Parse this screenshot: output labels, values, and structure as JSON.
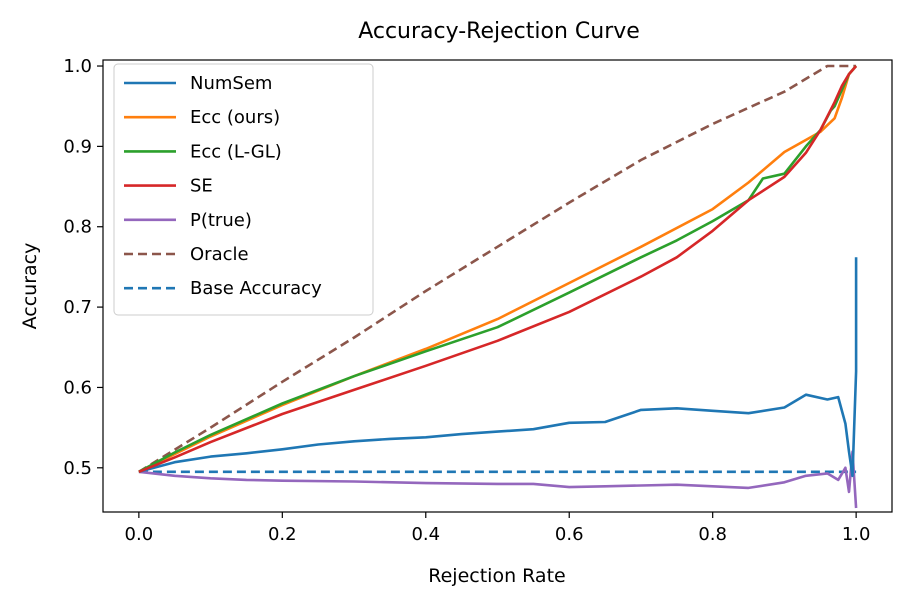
{
  "chart_data": {
    "type": "line",
    "title": "Accuracy-Rejection Curve",
    "xlabel": "Rejection Rate",
    "ylabel": "Accuracy",
    "xlim": [
      -0.05,
      1.05
    ],
    "ylim": [
      0.445,
      1.0075
    ],
    "xticks": [
      "0.0",
      "0.2",
      "0.4",
      "0.6",
      "0.8",
      "1.0"
    ],
    "xtick_values": [
      0.0,
      0.2,
      0.4,
      0.6,
      0.8,
      1.0
    ],
    "yticks": [
      "0.5",
      "0.6",
      "0.7",
      "0.8",
      "0.9",
      "1.0"
    ],
    "ytick_values": [
      0.5,
      0.6,
      0.7,
      0.8,
      0.9,
      1.0
    ],
    "grid": false,
    "legend_position": "top-left",
    "series": [
      {
        "name": "NumSem",
        "color": "#1f77b4",
        "dash": "solid",
        "x": [
          0.0,
          0.05,
          0.1,
          0.15,
          0.2,
          0.25,
          0.3,
          0.35,
          0.4,
          0.45,
          0.5,
          0.55,
          0.6,
          0.65,
          0.7,
          0.75,
          0.8,
          0.85,
          0.9,
          0.93,
          0.96,
          0.975,
          0.985,
          0.99,
          0.995,
          1.0,
          1.0
        ],
        "y": [
          0.495,
          0.507,
          0.514,
          0.518,
          0.523,
          0.529,
          0.533,
          0.536,
          0.538,
          0.542,
          0.545,
          0.548,
          0.556,
          0.557,
          0.572,
          0.574,
          0.571,
          0.568,
          0.575,
          0.591,
          0.585,
          0.588,
          0.555,
          0.52,
          0.49,
          0.62,
          0.762
        ]
      },
      {
        "name": "Ecc (ours)",
        "color": "#ff7f0e",
        "dash": "solid",
        "x": [
          0.0,
          0.05,
          0.1,
          0.2,
          0.3,
          0.4,
          0.5,
          0.6,
          0.7,
          0.8,
          0.85,
          0.9,
          0.95,
          0.97,
          0.98,
          0.99,
          1.0
        ],
        "y": [
          0.495,
          0.517,
          0.539,
          0.578,
          0.614,
          0.648,
          0.685,
          0.73,
          0.775,
          0.822,
          0.855,
          0.893,
          0.918,
          0.935,
          0.96,
          0.99,
          1.0
        ]
      },
      {
        "name": "Ecc (L-GL)",
        "color": "#2ca02c",
        "dash": "solid",
        "x": [
          0.0,
          0.05,
          0.1,
          0.2,
          0.3,
          0.4,
          0.5,
          0.6,
          0.7,
          0.75,
          0.8,
          0.85,
          0.87,
          0.9,
          0.93,
          0.95,
          0.965,
          0.97,
          0.98,
          0.99,
          1.0
        ],
        "y": [
          0.495,
          0.519,
          0.541,
          0.58,
          0.614,
          0.645,
          0.675,
          0.718,
          0.762,
          0.783,
          0.807,
          0.833,
          0.86,
          0.866,
          0.9,
          0.92,
          0.945,
          0.95,
          0.97,
          0.99,
          1.0
        ]
      },
      {
        "name": "SE",
        "color": "#d62728",
        "dash": "solid",
        "x": [
          0.0,
          0.05,
          0.1,
          0.2,
          0.3,
          0.4,
          0.5,
          0.6,
          0.7,
          0.75,
          0.8,
          0.85,
          0.9,
          0.93,
          0.95,
          0.97,
          0.98,
          0.99,
          1.0
        ],
        "y": [
          0.495,
          0.513,
          0.532,
          0.567,
          0.597,
          0.627,
          0.658,
          0.694,
          0.738,
          0.762,
          0.795,
          0.833,
          0.862,
          0.892,
          0.92,
          0.955,
          0.975,
          0.99,
          1.0
        ]
      },
      {
        "name": "P(true)",
        "color": "#9467bd",
        "dash": "solid",
        "x": [
          0.0,
          0.05,
          0.1,
          0.15,
          0.2,
          0.3,
          0.4,
          0.5,
          0.55,
          0.6,
          0.65,
          0.7,
          0.75,
          0.8,
          0.85,
          0.9,
          0.93,
          0.96,
          0.975,
          0.985,
          0.99,
          0.995,
          1.0
        ],
        "y": [
          0.495,
          0.49,
          0.487,
          0.485,
          0.484,
          0.483,
          0.481,
          0.48,
          0.48,
          0.476,
          0.477,
          0.478,
          0.479,
          0.477,
          0.475,
          0.482,
          0.49,
          0.493,
          0.485,
          0.5,
          0.47,
          0.52,
          0.45
        ]
      },
      {
        "name": "Oracle",
        "color": "#8c564b",
        "dash": "dashed",
        "x": [
          0.0,
          0.1,
          0.2,
          0.3,
          0.4,
          0.5,
          0.6,
          0.7,
          0.8,
          0.9,
          0.96,
          0.97,
          1.0
        ],
        "y": [
          0.495,
          0.55,
          0.607,
          0.662,
          0.72,
          0.775,
          0.83,
          0.883,
          0.928,
          0.968,
          1.0,
          1.0,
          1.0
        ]
      },
      {
        "name": "Base Accuracy",
        "color": "#1f77b4",
        "dash": "dashed",
        "x": [
          0.0,
          1.0
        ],
        "y": [
          0.495,
          0.495
        ]
      }
    ]
  }
}
